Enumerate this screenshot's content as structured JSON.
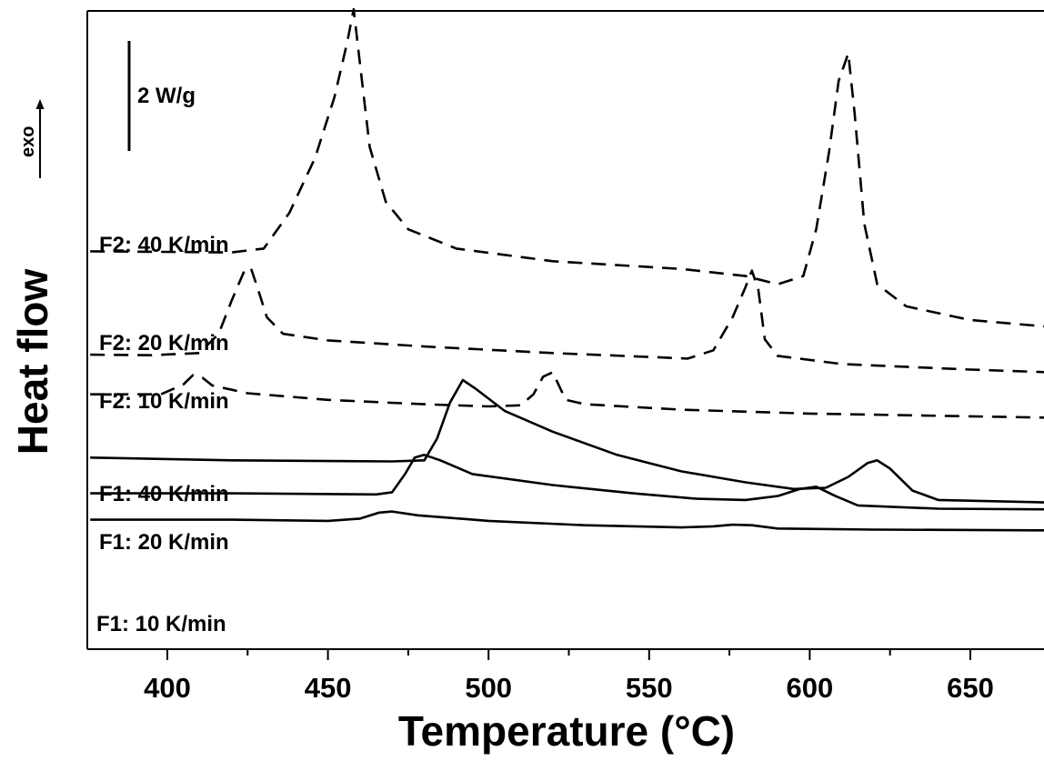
{
  "chart_data": {
    "type": "line",
    "xlabel": "Temperature (°C)",
    "ylabel": "Heat flow",
    "xlim": [
      376,
      700
    ],
    "x_ticks": [
      400,
      450,
      500,
      550,
      600,
      650
    ],
    "x_tick_labels": [
      "400",
      "450",
      "500",
      "550",
      "600",
      "650"
    ],
    "scale_bar": {
      "label": "2 W/g",
      "value_wg": 2
    },
    "exo_label": "exo",
    "grid": false,
    "legend": "none",
    "series": [
      {
        "name": "F2: 40 K/min",
        "style": "dashed",
        "points": [
          [
            376,
            3.2
          ],
          [
            420,
            3.18
          ],
          [
            430,
            3.25
          ],
          [
            438,
            3.9
          ],
          [
            446,
            4.9
          ],
          [
            452,
            6.0
          ],
          [
            456,
            7.0
          ],
          [
            458,
            7.6
          ],
          [
            460,
            6.6
          ],
          [
            463,
            5.1
          ],
          [
            468,
            4.1
          ],
          [
            475,
            3.6
          ],
          [
            490,
            3.25
          ],
          [
            520,
            3.02
          ],
          [
            560,
            2.88
          ],
          [
            580,
            2.75
          ],
          [
            590,
            2.6
          ],
          [
            598,
            2.75
          ],
          [
            602,
            3.6
          ],
          [
            606,
            5.0
          ],
          [
            609,
            6.3
          ],
          [
            612,
            6.8
          ],
          [
            614,
            5.7
          ],
          [
            617,
            3.7
          ],
          [
            621,
            2.6
          ],
          [
            630,
            2.2
          ],
          [
            650,
            1.95
          ],
          [
            700,
            1.7
          ]
        ]
      },
      {
        "name": "F2: 20 K/min",
        "style": "dashed",
        "points": [
          [
            376,
            1.32
          ],
          [
            395,
            1.31
          ],
          [
            410,
            1.35
          ],
          [
            416,
            1.7
          ],
          [
            420,
            2.3
          ],
          [
            424,
            2.85
          ],
          [
            426,
            2.9
          ],
          [
            428,
            2.55
          ],
          [
            431,
            2.0
          ],
          [
            436,
            1.7
          ],
          [
            450,
            1.58
          ],
          [
            480,
            1.47
          ],
          [
            520,
            1.35
          ],
          [
            550,
            1.28
          ],
          [
            562,
            1.25
          ],
          [
            570,
            1.4
          ],
          [
            576,
            2.0
          ],
          [
            580,
            2.55
          ],
          [
            582,
            2.85
          ],
          [
            584,
            2.5
          ],
          [
            586,
            1.6
          ],
          [
            590,
            1.3
          ],
          [
            610,
            1.15
          ],
          [
            650,
            1.05
          ],
          [
            700,
            0.95
          ]
        ]
      },
      {
        "name": "F2: 10 K/min",
        "style": "dashed",
        "points": [
          [
            376,
            0.6
          ],
          [
            398,
            0.6
          ],
          [
            405,
            0.78
          ],
          [
            408,
            0.95
          ],
          [
            411,
            0.9
          ],
          [
            414,
            0.76
          ],
          [
            425,
            0.62
          ],
          [
            450,
            0.5
          ],
          [
            480,
            0.42
          ],
          [
            500,
            0.38
          ],
          [
            510,
            0.4
          ],
          [
            514,
            0.6
          ],
          [
            517,
            0.92
          ],
          [
            520,
            1.0
          ],
          [
            522,
            0.75
          ],
          [
            524,
            0.5
          ],
          [
            530,
            0.42
          ],
          [
            560,
            0.32
          ],
          [
            600,
            0.25
          ],
          [
            650,
            0.2
          ],
          [
            700,
            0.15
          ]
        ]
      },
      {
        "name": "F1: 40 K/min",
        "style": "solid",
        "points": [
          [
            376,
            -0.55
          ],
          [
            420,
            -0.6
          ],
          [
            470,
            -0.62
          ],
          [
            480,
            -0.6
          ],
          [
            484,
            -0.2
          ],
          [
            488,
            0.45
          ],
          [
            492,
            0.86
          ],
          [
            496,
            0.7
          ],
          [
            505,
            0.3
          ],
          [
            520,
            -0.08
          ],
          [
            540,
            -0.5
          ],
          [
            560,
            -0.8
          ],
          [
            580,
            -1.0
          ],
          [
            595,
            -1.12
          ],
          [
            605,
            -1.1
          ],
          [
            612,
            -0.9
          ],
          [
            618,
            -0.65
          ],
          [
            621,
            -0.6
          ],
          [
            625,
            -0.75
          ],
          [
            632,
            -1.15
          ],
          [
            640,
            -1.32
          ],
          [
            700,
            -1.4
          ]
        ]
      },
      {
        "name": "F1: 20 K/min",
        "style": "solid",
        "points": [
          [
            376,
            -1.2
          ],
          [
            420,
            -1.2
          ],
          [
            465,
            -1.22
          ],
          [
            470,
            -1.18
          ],
          [
            474,
            -0.85
          ],
          [
            477,
            -0.55
          ],
          [
            480,
            -0.5
          ],
          [
            485,
            -0.6
          ],
          [
            495,
            -0.85
          ],
          [
            520,
            -1.05
          ],
          [
            545,
            -1.2
          ],
          [
            565,
            -1.3
          ],
          [
            580,
            -1.32
          ],
          [
            590,
            -1.25
          ],
          [
            597,
            -1.12
          ],
          [
            602,
            -1.08
          ],
          [
            608,
            -1.25
          ],
          [
            615,
            -1.42
          ],
          [
            640,
            -1.48
          ],
          [
            700,
            -1.5
          ]
        ]
      },
      {
        "name": "F1: 10 K/min",
        "style": "solid",
        "points": [
          [
            376,
            -1.68
          ],
          [
            420,
            -1.68
          ],
          [
            450,
            -1.7
          ],
          [
            460,
            -1.66
          ],
          [
            466,
            -1.55
          ],
          [
            470,
            -1.53
          ],
          [
            478,
            -1.6
          ],
          [
            500,
            -1.7
          ],
          [
            530,
            -1.78
          ],
          [
            560,
            -1.82
          ],
          [
            570,
            -1.8
          ],
          [
            576,
            -1.77
          ],
          [
            582,
            -1.78
          ],
          [
            590,
            -1.84
          ],
          [
            620,
            -1.86
          ],
          [
            700,
            -1.88
          ]
        ]
      }
    ]
  }
}
